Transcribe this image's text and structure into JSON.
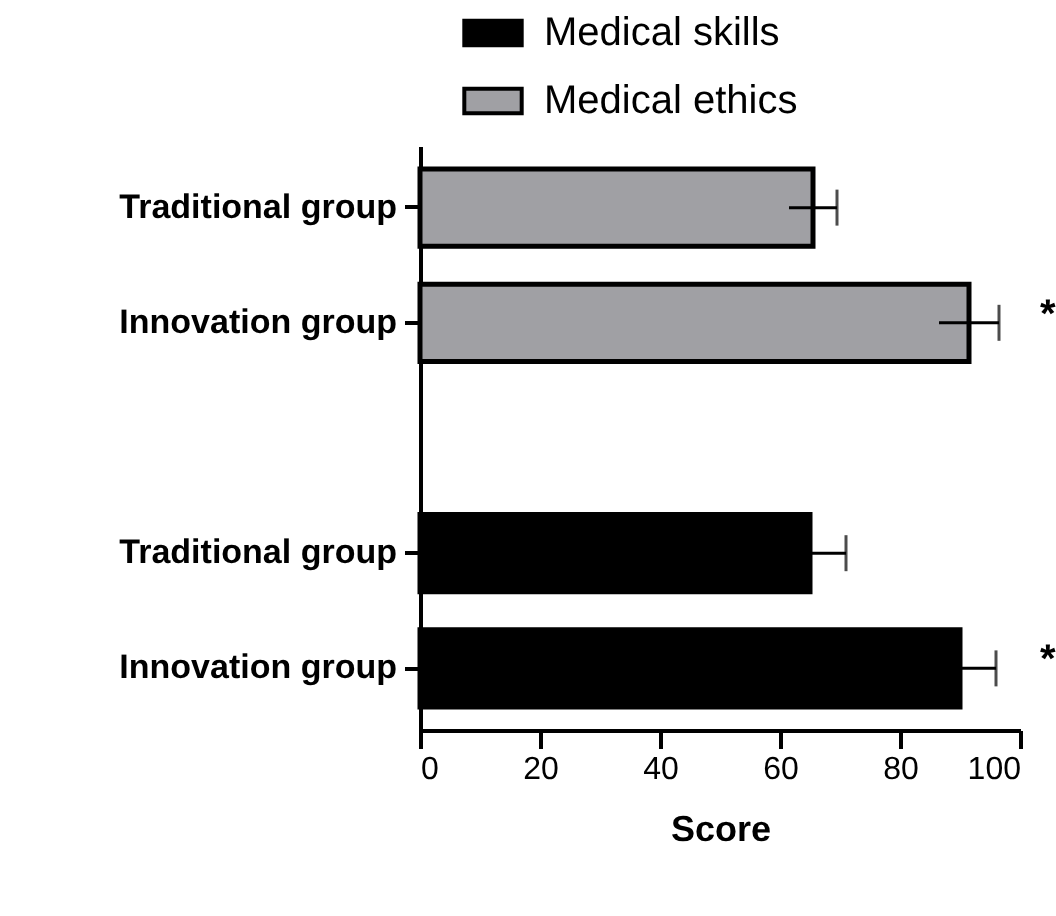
{
  "chart_data": {
    "type": "bar",
    "orientation": "horizontal",
    "xlabel": "Score",
    "categories": [
      "Traditional group",
      "Innovation group",
      null,
      "Traditional group",
      "Innovation group"
    ],
    "series": [
      {
        "name": "Medical ethics",
        "color": "#a0a0a4",
        "values": [
          65.5,
          91.5,
          null,
          null,
          null
        ],
        "errors": [
          4,
          5,
          null,
          null,
          null
        ]
      },
      {
        "name": "Medical skills",
        "color": "#000000",
        "values": [
          null,
          null,
          null,
          65,
          90
        ],
        "errors": [
          null,
          null,
          null,
          6,
          6
        ]
      }
    ],
    "xlim": [
      0,
      100
    ],
    "xticks": [
      0,
      20,
      40,
      60,
      80,
      100
    ],
    "grid": false,
    "legend": "top",
    "annotations": [
      "*",
      "*"
    ]
  }
}
